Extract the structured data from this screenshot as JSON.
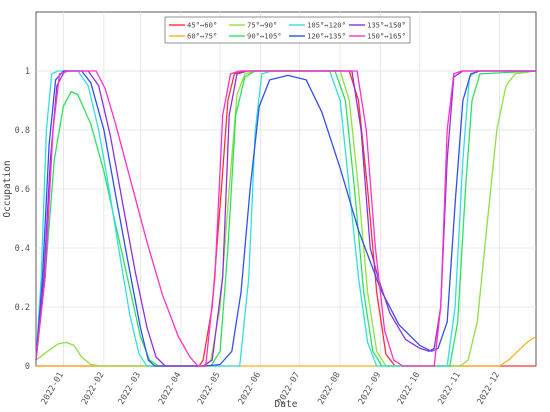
{
  "chart_data": {
    "type": "line",
    "xlabel": "Date",
    "ylabel": "Occupation",
    "xlim": [
      "2021-12-11",
      "2022-12-29"
    ],
    "ylim": [
      0,
      1.2
    ],
    "grid": true,
    "legend_position": "top-center",
    "x_ticks": [
      "2022-01",
      "2022-02",
      "2022-03",
      "2022-04",
      "2022-05",
      "2022-06",
      "2022-07",
      "2022-08",
      "2022-09",
      "2022-10",
      "2022-11",
      "2022-12"
    ],
    "y_ticks": [
      "0",
      "0.2",
      "0.4",
      "0.6",
      "0.8",
      "1"
    ],
    "series": [
      {
        "name": "45°↔60°",
        "color": "#ff3030",
        "points": [
          [
            "2021-12-11",
            0
          ],
          [
            "2022-04-15",
            0
          ],
          [
            "2022-04-18",
            0.02
          ],
          [
            "2022-04-25",
            0.2
          ],
          [
            "2022-05-02",
            0.6
          ],
          [
            "2022-05-07",
            0.9
          ],
          [
            "2022-05-12",
            0.99
          ],
          [
            "2022-05-20",
            1
          ],
          [
            "2022-08-08",
            1
          ],
          [
            "2022-08-15",
            0.9
          ],
          [
            "2022-08-22",
            0.6
          ],
          [
            "2022-08-29",
            0.25
          ],
          [
            "2022-09-05",
            0.04
          ],
          [
            "2022-09-12",
            0
          ],
          [
            "2022-12-29",
            0
          ]
        ]
      },
      {
        "name": "60°↔75°",
        "color": "#ffb020",
        "points": [
          [
            "2021-12-11",
            0
          ],
          [
            "2022-12-01",
            0
          ],
          [
            "2022-12-08",
            0.02
          ],
          [
            "2022-12-15",
            0.05
          ],
          [
            "2022-12-22",
            0.08
          ],
          [
            "2022-12-29",
            0.1
          ]
        ]
      },
      {
        "name": "75°↔90°",
        "color": "#90e040",
        "points": [
          [
            "2021-12-11",
            0.02
          ],
          [
            "2021-12-20",
            0.05
          ],
          [
            "2021-12-28",
            0.075
          ],
          [
            "2022-01-03",
            0.08
          ],
          [
            "2022-01-09",
            0.07
          ],
          [
            "2022-01-15",
            0.03
          ],
          [
            "2022-01-22",
            0.005
          ],
          [
            "2022-01-30",
            0
          ],
          [
            "2022-04-20",
            0
          ],
          [
            "2022-04-24",
            0.02
          ],
          [
            "2022-05-01",
            0.2
          ],
          [
            "2022-05-08",
            0.6
          ],
          [
            "2022-05-14",
            0.92
          ],
          [
            "2022-05-20",
            0.99
          ],
          [
            "2022-05-28",
            1
          ],
          [
            "2022-08-01",
            1
          ],
          [
            "2022-08-08",
            0.9
          ],
          [
            "2022-08-15",
            0.6
          ],
          [
            "2022-08-22",
            0.25
          ],
          [
            "2022-08-29",
            0.05
          ],
          [
            "2022-09-05",
            0
          ],
          [
            "2022-11-01",
            0
          ],
          [
            "2022-11-07",
            0.02
          ],
          [
            "2022-11-14",
            0.15
          ],
          [
            "2022-11-22",
            0.5
          ],
          [
            "2022-11-29",
            0.8
          ],
          [
            "2022-12-06",
            0.95
          ],
          [
            "2022-12-13",
            0.99
          ],
          [
            "2022-12-29",
            1
          ]
        ]
      },
      {
        "name": "90°↔105°",
        "color": "#30e060",
        "points": [
          [
            "2021-12-11",
            0.02
          ],
          [
            "2021-12-18",
            0.3
          ],
          [
            "2021-12-25",
            0.7
          ],
          [
            "2022-01-01",
            0.88
          ],
          [
            "2022-01-07",
            0.93
          ],
          [
            "2022-01-12",
            0.92
          ],
          [
            "2022-01-22",
            0.82
          ],
          [
            "2022-02-01",
            0.66
          ],
          [
            "2022-02-10",
            0.48
          ],
          [
            "2022-02-20",
            0.28
          ],
          [
            "2022-03-01",
            0.1
          ],
          [
            "2022-03-08",
            0.02
          ],
          [
            "2022-03-15",
            0
          ],
          [
            "2022-04-24",
            0
          ],
          [
            "2022-05-01",
            0.05
          ],
          [
            "2022-05-07",
            0.4
          ],
          [
            "2022-05-13",
            0.85
          ],
          [
            "2022-05-20",
            0.98
          ],
          [
            "2022-05-28",
            1
          ],
          [
            "2022-07-28",
            1
          ],
          [
            "2022-08-05",
            0.9
          ],
          [
            "2022-08-12",
            0.6
          ],
          [
            "2022-08-19",
            0.25
          ],
          [
            "2022-08-26",
            0.05
          ],
          [
            "2022-09-02",
            0
          ],
          [
            "2022-10-24",
            0
          ],
          [
            "2022-10-30",
            0.15
          ],
          [
            "2022-11-05",
            0.6
          ],
          [
            "2022-11-10",
            0.9
          ],
          [
            "2022-11-16",
            0.99
          ],
          [
            "2022-12-29",
            1
          ]
        ]
      },
      {
        "name": "105°↔120°",
        "color": "#30e0e0",
        "points": [
          [
            "2021-12-11",
            0.02
          ],
          [
            "2021-12-15",
            0.3
          ],
          [
            "2021-12-19",
            0.8
          ],
          [
            "2021-12-23",
            0.99
          ],
          [
            "2021-12-28",
            1
          ],
          [
            "2022-01-12",
            1
          ],
          [
            "2022-01-20",
            0.95
          ],
          [
            "2022-01-28",
            0.8
          ],
          [
            "2022-02-05",
            0.6
          ],
          [
            "2022-02-13",
            0.38
          ],
          [
            "2022-02-21",
            0.17
          ],
          [
            "2022-02-28",
            0.04
          ],
          [
            "2022-03-06",
            0
          ],
          [
            "2022-05-16",
            0
          ],
          [
            "2022-05-23",
            0.3
          ],
          [
            "2022-05-28",
            0.8
          ],
          [
            "2022-06-02",
            0.99
          ],
          [
            "2022-06-10",
            1
          ],
          [
            "2022-07-24",
            1
          ],
          [
            "2022-08-01",
            0.9
          ],
          [
            "2022-08-08",
            0.6
          ],
          [
            "2022-08-15",
            0.3
          ],
          [
            "2022-08-22",
            0.08
          ],
          [
            "2022-08-29",
            0
          ],
          [
            "2022-10-22",
            0
          ],
          [
            "2022-10-28",
            0.2
          ],
          [
            "2022-11-03",
            0.7
          ],
          [
            "2022-11-08",
            0.98
          ],
          [
            "2022-11-14",
            1
          ],
          [
            "2022-12-29",
            1
          ]
        ]
      },
      {
        "name": "120°↔135°",
        "color": "#3050f0",
        "points": [
          [
            "2021-12-11",
            0.02
          ],
          [
            "2021-12-16",
            0.3
          ],
          [
            "2021-12-21",
            0.75
          ],
          [
            "2021-12-26",
            0.97
          ],
          [
            "2022-01-01",
            1
          ],
          [
            "2022-01-15",
            1
          ],
          [
            "2022-01-22",
            0.96
          ],
          [
            "2022-02-01",
            0.8
          ],
          [
            "2022-02-10",
            0.58
          ],
          [
            "2022-02-20",
            0.34
          ],
          [
            "2022-03-01",
            0.13
          ],
          [
            "2022-03-07",
            0.02
          ],
          [
            "2022-03-12",
            0
          ],
          [
            "2022-04-20",
            0
          ],
          [
            "2022-05-01",
            0.005
          ],
          [
            "2022-05-10",
            0.05
          ],
          [
            "2022-05-17",
            0.25
          ],
          [
            "2022-05-24",
            0.6
          ],
          [
            "2022-05-31",
            0.88
          ],
          [
            "2022-06-08",
            0.97
          ],
          [
            "2022-06-22",
            0.985
          ],
          [
            "2022-07-06",
            0.97
          ],
          [
            "2022-07-18",
            0.86
          ],
          [
            "2022-08-01",
            0.67
          ],
          [
            "2022-08-15",
            0.46
          ],
          [
            "2022-09-01",
            0.26
          ],
          [
            "2022-09-15",
            0.14
          ],
          [
            "2022-10-01",
            0.07
          ],
          [
            "2022-10-10",
            0.05
          ],
          [
            "2022-10-15",
            0.06
          ],
          [
            "2022-10-22",
            0.15
          ],
          [
            "2022-10-28",
            0.55
          ],
          [
            "2022-11-03",
            0.9
          ],
          [
            "2022-11-09",
            0.99
          ],
          [
            "2022-11-16",
            1
          ],
          [
            "2022-12-29",
            1
          ]
        ]
      },
      {
        "name": "135°↔150°",
        "color": "#9030e0",
        "points": [
          [
            "2021-12-11",
            0.02
          ],
          [
            "2021-12-17",
            0.3
          ],
          [
            "2021-12-22",
            0.7
          ],
          [
            "2021-12-27",
            0.95
          ],
          [
            "2022-01-02",
            1
          ],
          [
            "2022-01-20",
            1
          ],
          [
            "2022-01-28",
            0.95
          ],
          [
            "2022-02-06",
            0.78
          ],
          [
            "2022-02-15",
            0.56
          ],
          [
            "2022-02-25",
            0.32
          ],
          [
            "2022-03-06",
            0.13
          ],
          [
            "2022-03-13",
            0.03
          ],
          [
            "2022-03-20",
            0
          ],
          [
            "2022-04-18",
            0
          ],
          [
            "2022-04-25",
            0.02
          ],
          [
            "2022-05-03",
            0.3
          ],
          [
            "2022-05-08",
            0.85
          ],
          [
            "2022-05-14",
            0.99
          ],
          [
            "2022-05-22",
            1
          ],
          [
            "2022-08-10",
            1
          ],
          [
            "2022-08-17",
            0.8
          ],
          [
            "2022-08-24",
            0.4
          ],
          [
            "2022-08-30",
            0.3
          ],
          [
            "2022-09-08",
            0.18
          ],
          [
            "2022-09-20",
            0.09
          ],
          [
            "2022-10-01",
            0.06
          ],
          [
            "2022-10-08",
            0.05
          ],
          [
            "2022-10-12",
            0.06
          ],
          [
            "2022-10-17",
            0.2
          ],
          [
            "2022-10-22",
            0.7
          ],
          [
            "2022-10-27",
            0.98
          ],
          [
            "2022-11-03",
            1
          ],
          [
            "2022-12-29",
            1
          ]
        ]
      },
      {
        "name": "150°↔165°",
        "color": "#ff30c8",
        "points": [
          [
            "2021-12-11",
            0.02
          ],
          [
            "2021-12-18",
            0.3
          ],
          [
            "2021-12-24",
            0.8
          ],
          [
            "2021-12-29",
            0.99
          ],
          [
            "2022-01-05",
            1
          ],
          [
            "2022-01-26",
            1
          ],
          [
            "2022-02-02",
            0.94
          ],
          [
            "2022-02-10",
            0.82
          ],
          [
            "2022-02-22",
            0.62
          ],
          [
            "2022-03-06",
            0.42
          ],
          [
            "2022-03-18",
            0.24
          ],
          [
            "2022-03-30",
            0.1
          ],
          [
            "2022-04-08",
            0.03
          ],
          [
            "2022-04-14",
            0
          ],
          [
            "2022-04-20",
            0
          ],
          [
            "2022-04-27",
            0.3
          ],
          [
            "2022-05-03",
            0.85
          ],
          [
            "2022-05-09",
            0.99
          ],
          [
            "2022-05-16",
            1
          ],
          [
            "2022-08-14",
            1
          ],
          [
            "2022-08-21",
            0.8
          ],
          [
            "2022-08-28",
            0.4
          ],
          [
            "2022-09-04",
            0.12
          ],
          [
            "2022-09-11",
            0.02
          ],
          [
            "2022-09-18",
            0
          ],
          [
            "2022-10-12",
            0
          ],
          [
            "2022-10-17",
            0.2
          ],
          [
            "2022-10-22",
            0.8
          ],
          [
            "2022-10-27",
            0.99
          ],
          [
            "2022-11-02",
            1
          ],
          [
            "2022-12-29",
            1
          ]
        ]
      }
    ]
  }
}
